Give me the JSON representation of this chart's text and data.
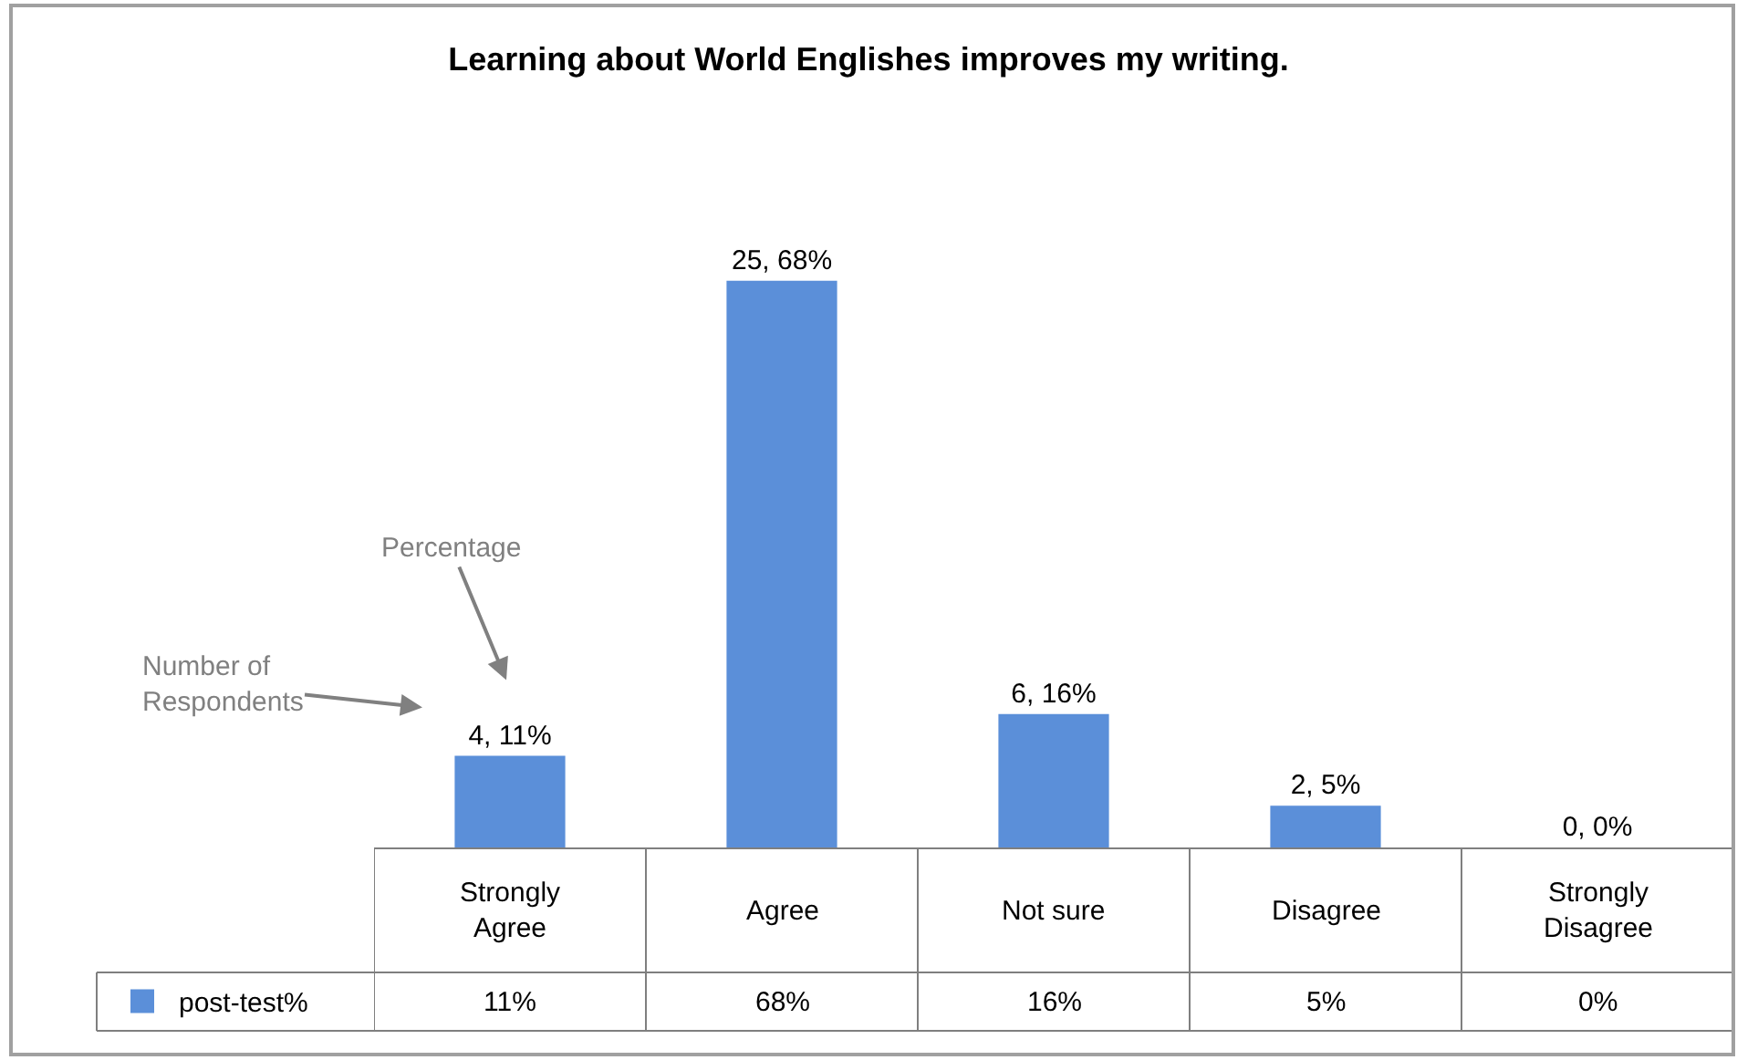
{
  "chart_data": {
    "type": "bar",
    "title": "Learning about World Englishes improves my writing.",
    "categories": [
      "Strongly Agree",
      "Agree",
      "Not sure",
      "Disagree",
      "Strongly Disagree"
    ],
    "series": [
      {
        "name": "post-test%",
        "color": "#5b8fd9",
        "values": [
          11,
          68,
          16,
          5,
          0
        ],
        "value_labels": [
          "4, 11%",
          "25, 68%",
          "6, 16%",
          "2, 5%",
          "0, 0%"
        ]
      }
    ],
    "legend": "bottom left",
    "annotations": [
      "Percentage",
      "Number of Respondents",
      "11%",
      "68%",
      "16%",
      "5%",
      "0%"
    ]
  }
}
